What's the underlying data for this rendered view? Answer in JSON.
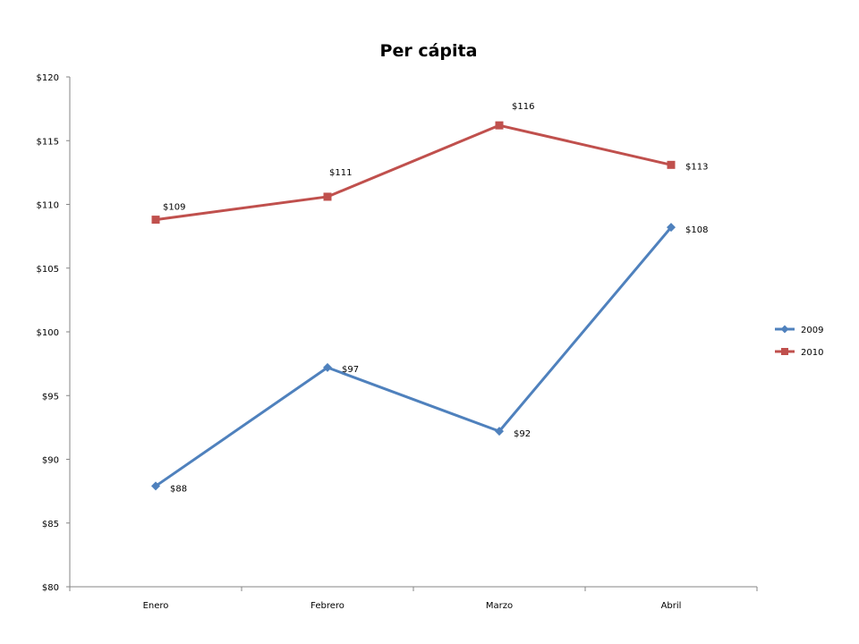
{
  "chart_data": {
    "type": "line",
    "title": "Per cápita",
    "xlabel": "",
    "ylabel": "",
    "categories": [
      "Enero",
      "Febrero",
      "Marzo",
      "Abril"
    ],
    "y_ticks": [
      "$80",
      "$85",
      "$90",
      "$95",
      "$100",
      "$105",
      "$110",
      "$115",
      "$120"
    ],
    "ylim": [
      80,
      120
    ],
    "grid": false,
    "legend_position": "right",
    "series": [
      {
        "name": "2009",
        "values": [
          87.9,
          97.2,
          92.2,
          108.2
        ],
        "labels": [
          "$88",
          "$97",
          "$92",
          "$108"
        ],
        "color": "#4F81BD",
        "marker": "diamond"
      },
      {
        "name": "2010",
        "values": [
          108.8,
          110.6,
          116.2,
          113.1
        ],
        "labels": [
          "$109",
          "$111",
          "$116",
          "$113"
        ],
        "color": "#C0504D",
        "marker": "square"
      }
    ]
  }
}
